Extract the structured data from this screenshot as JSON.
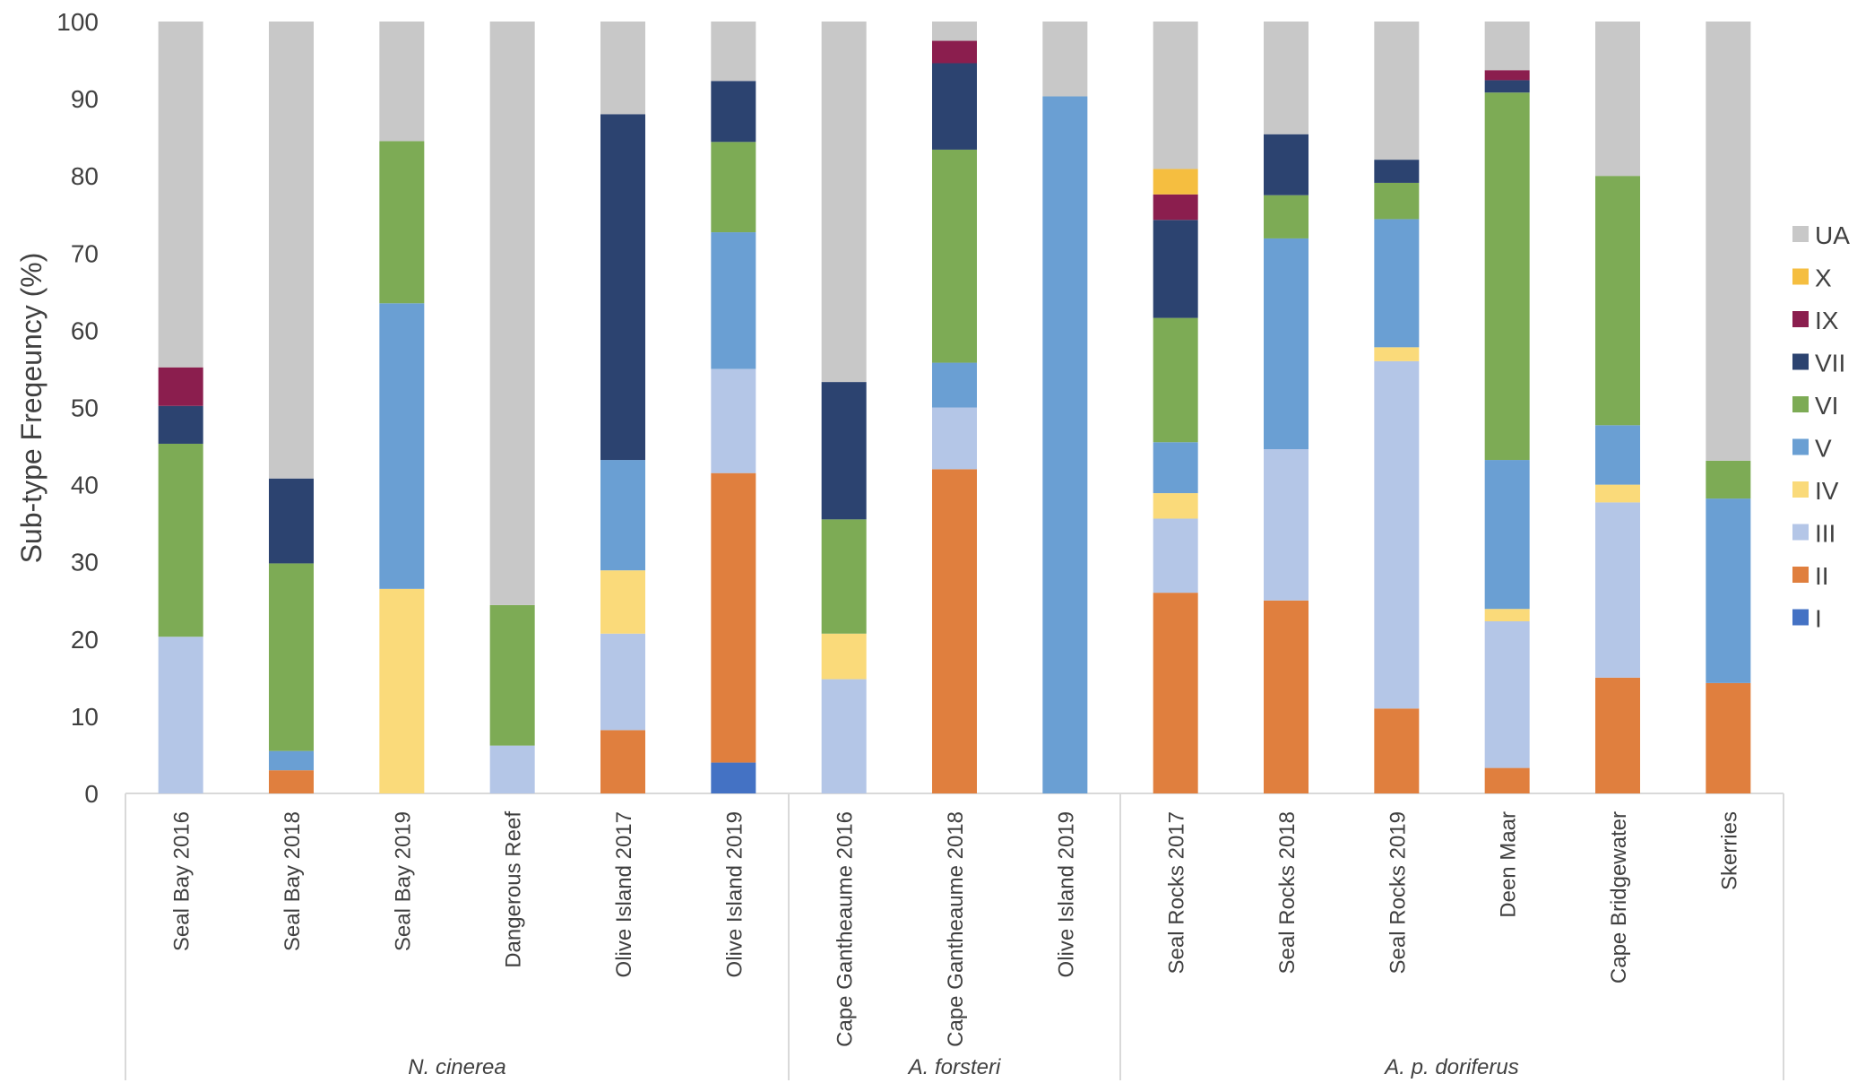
{
  "chart_data": {
    "type": "bar",
    "stacked": true,
    "title": "",
    "xlabel": "",
    "ylabel": "Sub-type Freqeuncy (%)",
    "ylim": [
      0,
      100
    ],
    "yticks": [
      "0",
      "10",
      "20",
      "30",
      "40",
      "50",
      "60",
      "70",
      "80",
      "90",
      "100"
    ],
    "grid": false,
    "legend_position": "right",
    "legend_order": [
      "UA",
      "X",
      "IX",
      "VII",
      "VI",
      "V",
      "IV",
      "III",
      "II",
      "I"
    ],
    "categories": [
      "Seal Bay 2016",
      "Seal Bay 2018",
      "Seal Bay 2019",
      "Dangerous Reef",
      "Olive Island 2017",
      "Olive Island 2019",
      "Cape Gantheaume 2016",
      "Cape Gantheaume 2018",
      "Olive Island 2019",
      "Seal Rocks 2017",
      "Seal Rocks 2018",
      "Seal Rocks 2019",
      "Deen Maar",
      "Cape Bridgewater",
      "Skerries"
    ],
    "groups": [
      {
        "label": "N. cinerea",
        "count": 6
      },
      {
        "label": "A. forsteri",
        "count": 3
      },
      {
        "label": "A. p. doriferus",
        "count": 6
      }
    ],
    "series": [
      {
        "name": "I",
        "color": "#4472C4",
        "values": [
          0,
          0,
          0,
          0,
          0,
          4,
          0,
          0,
          0,
          0,
          0,
          0,
          0,
          0,
          0
        ]
      },
      {
        "name": "II",
        "color": "#E07F3E",
        "values": [
          0,
          3,
          0,
          0,
          8.2,
          37.5,
          0,
          42,
          0,
          26,
          25,
          11,
          3.3,
          15,
          14.3
        ]
      },
      {
        "name": "III",
        "color": "#B4C6E7",
        "values": [
          20.3,
          0,
          0,
          6.2,
          12.5,
          13.5,
          14.8,
          8,
          0,
          9.6,
          19.6,
          45,
          19,
          22.7,
          0
        ]
      },
      {
        "name": "IV",
        "color": "#FADA7A",
        "values": [
          0,
          0,
          26.5,
          0,
          8.2,
          0,
          5.9,
          0,
          0,
          3.3,
          0,
          1.8,
          1.6,
          2.3,
          0
        ]
      },
      {
        "name": "V",
        "color": "#6A9FD3",
        "values": [
          0,
          2.5,
          37,
          0,
          14.3,
          17.7,
          0,
          5.8,
          90.3,
          6.6,
          27.3,
          16.6,
          19.3,
          7.7,
          23.9
        ]
      },
      {
        "name": "VI",
        "color": "#7DAB55",
        "values": [
          25,
          24.3,
          21,
          18.2,
          0,
          11.7,
          14.8,
          27.6,
          0,
          16.1,
          5.6,
          4.7,
          47.6,
          32.3,
          4.9
        ]
      },
      {
        "name": "VII",
        "color": "#2C4370",
        "values": [
          4.9,
          11,
          0,
          0,
          44.8,
          7.9,
          17.8,
          11.2,
          0,
          12.7,
          7.9,
          3,
          1.6,
          0,
          0
        ]
      },
      {
        "name": "IX",
        "color": "#8B1E4E",
        "values": [
          5,
          0,
          0,
          0,
          0,
          0,
          0,
          2.9,
          0,
          3.3,
          0,
          0,
          1.3,
          0,
          0
        ]
      },
      {
        "name": "X",
        "color": "#F5BE40",
        "values": [
          0,
          0,
          0,
          0,
          0,
          0,
          0,
          0,
          0,
          3.3,
          0,
          0,
          0,
          0,
          0
        ]
      },
      {
        "name": "UA",
        "color": "#C8C8C8",
        "values": [
          44.8,
          59.2,
          15.5,
          75.6,
          12,
          7.7,
          46.7,
          2.5,
          9.7,
          19.1,
          14.6,
          17.9,
          6.3,
          20,
          56.9
        ]
      }
    ]
  }
}
